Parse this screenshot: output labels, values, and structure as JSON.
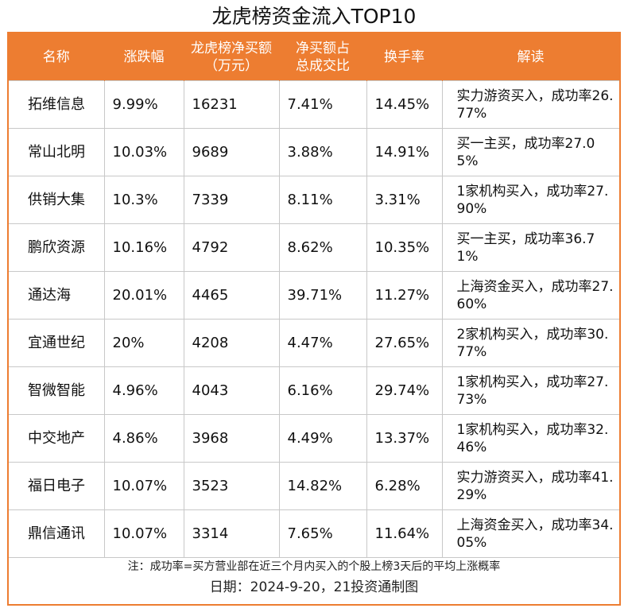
{
  "title": "龙虎榜资金流入TOP10",
  "headers": {
    "name": "名称",
    "change": "涨跌幅",
    "net_buy": "龙虎榜净买额（万元）",
    "net_buy_pct": "净买额占总成交比",
    "turnover": "换手率",
    "note": "解读"
  },
  "rows": [
    {
      "name": "拓维信息",
      "change": "9.99%",
      "net_buy": "16231",
      "net_buy_pct": "7.41%",
      "turnover": "14.45%",
      "note": "实力游资买入，成功率26.77%"
    },
    {
      "name": "常山北明",
      "change": "10.03%",
      "net_buy": "9689",
      "net_buy_pct": "3.88%",
      "turnover": "14.91%",
      "note": "买一主买，成功率27.05%"
    },
    {
      "name": "供销大集",
      "change": "10.3%",
      "net_buy": "7339",
      "net_buy_pct": "8.11%",
      "turnover": "3.31%",
      "note": "1家机构买入，成功率27.90%"
    },
    {
      "name": "鹏欣资源",
      "change": "10.16%",
      "net_buy": "4792",
      "net_buy_pct": "8.62%",
      "turnover": "10.35%",
      "note": "买一主买，成功率36.71%"
    },
    {
      "name": "通达海",
      "change": "20.01%",
      "net_buy": "4465",
      "net_buy_pct": "39.71%",
      "turnover": "11.27%",
      "note": "上海资金买入，成功率27.60%"
    },
    {
      "name": "宜通世纪",
      "change": "20%",
      "net_buy": "4208",
      "net_buy_pct": "4.47%",
      "turnover": "27.65%",
      "note": "2家机构买入，成功率30.77%"
    },
    {
      "name": "智微智能",
      "change": "4.96%",
      "net_buy": "4043",
      "net_buy_pct": "6.16%",
      "turnover": "29.74%",
      "note": "1家机构买入，成功率27.73%"
    },
    {
      "name": "中交地产",
      "change": "4.86%",
      "net_buy": "3968",
      "net_buy_pct": "4.49%",
      "turnover": "13.37%",
      "note": "1家机构买入，成功率32.46%"
    },
    {
      "name": "福日电子",
      "change": "10.07%",
      "net_buy": "3523",
      "net_buy_pct": "14.82%",
      "turnover": "6.28%",
      "note": "实力游资买入，成功率41.29%"
    },
    {
      "name": "鼎信通讯",
      "change": "10.07%",
      "net_buy": "3314",
      "net_buy_pct": "7.65%",
      "turnover": "11.64%",
      "note": "上海资金买入，成功率34.05%"
    }
  ],
  "footnote": "注：成功率=买方营业部在近三个月内买入的个股上榜3天后的平均上涨概率",
  "date_line": "日期：2024-9-20，21投资通制图",
  "colors": {
    "header_bg": "#ed7d31",
    "header_text": "#ffffff",
    "grid": "#c8c8c8"
  }
}
